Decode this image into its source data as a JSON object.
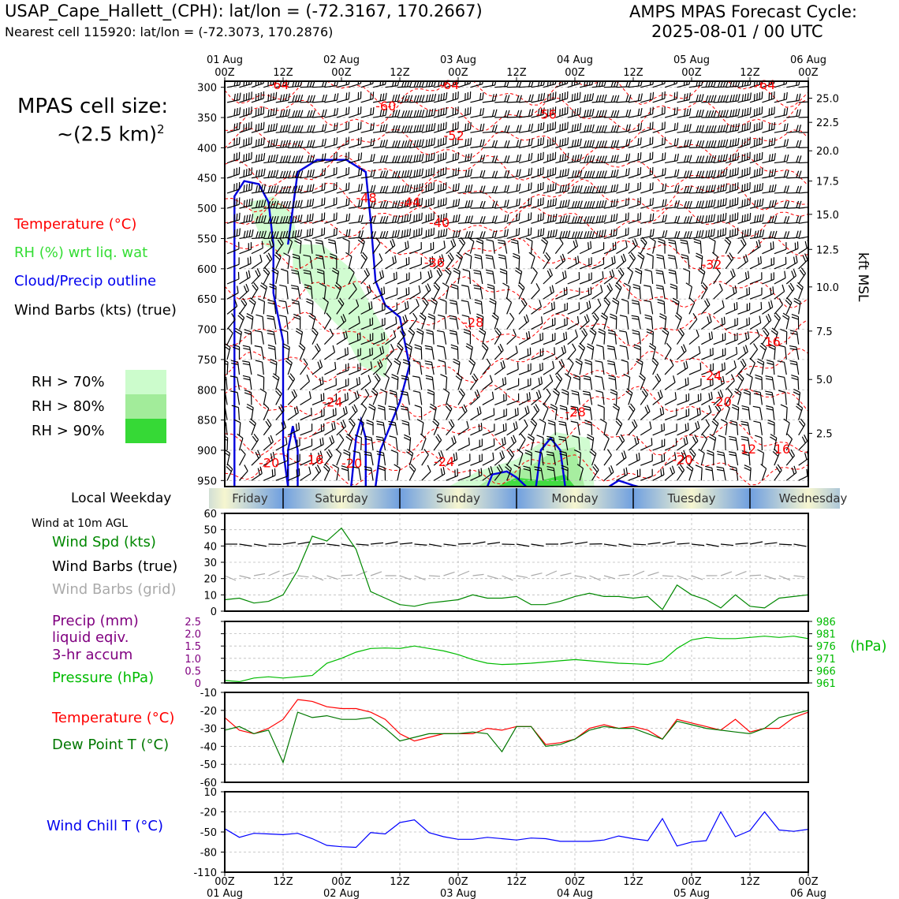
{
  "header": {
    "station": "USAP_Cape_Hallett_(CPH): lat/lon = (-72.3167, 170.2667)",
    "nearest": "Nearest cell 115920: lat/lon = (-72.3073, 170.2876)",
    "cycle_line1": "AMPS MPAS Forecast Cycle:",
    "cycle_line2": "2025-08-01 / 00 UTC"
  },
  "sidebar": {
    "cell_size_line1": "MPAS cell size:",
    "cell_size_line2": "~(2.5 km)",
    "cell_size_sup": "2",
    "legend_temperature": "Temperature (°C)",
    "legend_rh": "RH (%) wrt liq. wat",
    "legend_cloud": "Cloud/Precip outline",
    "legend_wind": "Wind Barbs (kts) (true)",
    "rh_levels": [
      {
        "label": "RH > 70%",
        "color": "#ccfccc"
      },
      {
        "label": "RH > 80%",
        "color": "#a2ec9a"
      },
      {
        "label": "RH > 90%",
        "color": "#36d936"
      }
    ],
    "local_weekday": "Local Weekday",
    "wind_10m": "Wind at 10m AGL",
    "wind_spd": "Wind Spd (kts)",
    "wind_barbs_true": "Wind Barbs (true)",
    "wind_barbs_grid": "Wind Barbs (grid)",
    "precip_line1": "Precip (mm)",
    "precip_line2": "liquid eqiv.",
    "precip_line3": "3-hr accum",
    "pressure": "Pressure (hPa)",
    "temperature": "Temperature (°C)",
    "dewpoint": "Dew Point T (°C)",
    "windchill": "Wind Chill T (°C)",
    "pressure_units": "(hPa)",
    "kft_label": "kft MSL"
  },
  "colors": {
    "temperature": "#ff0000",
    "rh": "#33cc33",
    "cloud": "#0000dd",
    "wind_true": "#000000",
    "wind_grid": "#aaaaaa",
    "precip": "#800080",
    "pressure": "#00bb00",
    "dewpoint": "#007700",
    "windchill": "#0000ff"
  },
  "chart_data": [
    {
      "type": "heatmap",
      "name": "time-height cross section",
      "top_axis_ticks": [
        {
          "hour": 0,
          "line1": "01 Aug",
          "line2": "00Z"
        },
        {
          "hour": 12,
          "line1": "",
          "line2": "12Z"
        },
        {
          "hour": 24,
          "line1": "02 Aug",
          "line2": "00Z"
        },
        {
          "hour": 36,
          "line1": "",
          "line2": "12Z"
        },
        {
          "hour": 48,
          "line1": "03 Aug",
          "line2": "00Z"
        },
        {
          "hour": 60,
          "line1": "",
          "line2": "12Z"
        },
        {
          "hour": 72,
          "line1": "04 Aug",
          "line2": "00Z"
        },
        {
          "hour": 84,
          "line1": "",
          "line2": "12Z"
        },
        {
          "hour": 96,
          "line1": "05 Aug",
          "line2": "00Z"
        },
        {
          "hour": 108,
          "line1": "",
          "line2": "12Z"
        },
        {
          "hour": 120,
          "line1": "06 Aug",
          "line2": "00Z"
        }
      ],
      "pressure_ticks": [
        300,
        350,
        400,
        450,
        500,
        550,
        600,
        650,
        700,
        750,
        800,
        850,
        900,
        950
      ],
      "kft_ticks": [
        {
          "label": "25.0",
          "p": 318
        },
        {
          "label": "22.5",
          "p": 358
        },
        {
          "label": "20.0",
          "p": 405
        },
        {
          "label": "17.5",
          "p": 455
        },
        {
          "label": "15.0",
          "p": 510
        },
        {
          "label": "12.5",
          "p": 568
        },
        {
          "label": "10.0",
          "p": 630
        },
        {
          "label": "7.5",
          "p": 703
        },
        {
          "label": "5.0",
          "p": 783
        },
        {
          "label": "2.5",
          "p": 872
        }
      ],
      "ylim": [
        290,
        960
      ],
      "xlim": [
        0,
        120
      ],
      "temperature_labels": [
        {
          "t": 9,
          "p": 303,
          "text": "-64"
        },
        {
          "t": 44,
          "p": 303,
          "text": "-64"
        },
        {
          "t": 109,
          "p": 303,
          "text": "-64"
        },
        {
          "t": 31,
          "p": 338,
          "text": "-60"
        },
        {
          "t": 64,
          "p": 352,
          "text": "-56"
        },
        {
          "t": 45,
          "p": 387,
          "text": "-52"
        },
        {
          "t": 27,
          "p": 490,
          "text": "-48"
        },
        {
          "t": 36,
          "p": 497,
          "text": "-44"
        },
        {
          "t": 42,
          "p": 531,
          "text": "-40"
        },
        {
          "t": 41,
          "p": 597,
          "text": "-36"
        },
        {
          "t": 98,
          "p": 600,
          "text": "-32"
        },
        {
          "t": 49,
          "p": 696,
          "text": "-28"
        },
        {
          "t": 70,
          "p": 844,
          "text": "-28"
        },
        {
          "t": 111,
          "p": 728,
          "text": "16"
        },
        {
          "t": 98,
          "p": 784,
          "text": "-24"
        },
        {
          "t": 20,
          "p": 828,
          "text": "-24"
        },
        {
          "t": 100,
          "p": 827,
          "text": "-20"
        },
        {
          "t": 7,
          "p": 928,
          "text": "-20"
        },
        {
          "t": 24,
          "p": 929,
          "text": "-20"
        },
        {
          "t": 43,
          "p": 926,
          "text": "-24"
        },
        {
          "t": 92,
          "p": 923,
          "text": "-20"
        },
        {
          "t": 106,
          "p": 905,
          "text": "12"
        },
        {
          "t": 113,
          "p": 905,
          "text": "16"
        },
        {
          "t": 17,
          "p": 923,
          "text": "16"
        }
      ],
      "rh_regions": [
        {
          "level": ">70%",
          "polygon_tp": [
            [
              5,
              490
            ],
            [
              10,
              480
            ],
            [
              14,
              510
            ],
            [
              15,
              560
            ],
            [
              12,
              580
            ],
            [
              8,
              560
            ],
            [
              6,
              520
            ]
          ]
        },
        {
          "level": ">70%",
          "polygon_tp": [
            [
              14,
              560
            ],
            [
              20,
              560
            ],
            [
              26,
              600
            ],
            [
              30,
              660
            ],
            [
              34,
              720
            ],
            [
              33,
              780
            ],
            [
              28,
              760
            ],
            [
              24,
              700
            ],
            [
              18,
              650
            ],
            [
              14,
              600
            ]
          ]
        },
        {
          "level": ">70%",
          "polygon_tp": [
            [
              46,
              960
            ],
            [
              52,
              935
            ],
            [
              60,
              915
            ],
            [
              68,
              870
            ],
            [
              75,
              880
            ],
            [
              76,
              960
            ]
          ]
        },
        {
          "level": ">80%",
          "polygon_tp": [
            [
              52,
              960
            ],
            [
              56,
              940
            ],
            [
              62,
              930
            ],
            [
              68,
              900
            ],
            [
              72,
              895
            ],
            [
              74,
              960
            ]
          ]
        },
        {
          "level": ">90%",
          "polygon_tp": [
            [
              56,
              960
            ],
            [
              60,
              945
            ],
            [
              65,
              950
            ],
            [
              70,
              940
            ],
            [
              72,
              960
            ]
          ]
        }
      ],
      "cloud_outlines": [
        {
          "points_tp": [
            [
              2,
              960
            ],
            [
              2,
              480
            ],
            [
              4,
              455
            ],
            [
              7,
              460
            ],
            [
              9,
              490
            ],
            [
              10,
              560
            ],
            [
              10,
              640
            ],
            [
              12,
              720
            ],
            [
              12,
              900
            ],
            [
              13,
              960
            ]
          ]
        },
        {
          "points_tp": [
            [
              13,
              960
            ],
            [
              13,
              900
            ],
            [
              14,
              860
            ],
            [
              15,
              900
            ],
            [
              15,
              960
            ]
          ]
        },
        {
          "points_tp": [
            [
              13,
              560
            ],
            [
              15,
              440
            ],
            [
              19,
              420
            ],
            [
              25,
              420
            ],
            [
              29,
              440
            ],
            [
              30,
              520
            ],
            [
              31,
              620
            ],
            [
              33,
              660
            ],
            [
              36,
              680
            ],
            [
              38,
              760
            ],
            [
              36,
              820
            ],
            [
              32,
              900
            ],
            [
              31,
              960
            ]
          ]
        },
        {
          "points_tp": [
            [
              26,
              960
            ],
            [
              27,
              880
            ],
            [
              28,
              850
            ],
            [
              29,
              880
            ],
            [
              29,
              960
            ]
          ]
        },
        {
          "points_tp": [
            [
              54,
              960
            ],
            [
              55,
              940
            ],
            [
              58,
              935
            ],
            [
              60,
              945
            ],
            [
              62,
              960
            ]
          ]
        },
        {
          "points_tp": [
            [
              64,
              960
            ],
            [
              65,
              900
            ],
            [
              67,
              880
            ],
            [
              69,
              900
            ],
            [
              70,
              960
            ]
          ]
        },
        {
          "points_tp": [
            [
              79,
              960
            ],
            [
              81,
              950
            ],
            [
              84,
              958
            ],
            [
              85,
              960
            ]
          ]
        }
      ],
      "isotherm_levels_p": [
        305,
        345,
        395,
        440,
        480,
        520,
        575,
        640,
        700,
        760,
        820,
        880,
        930
      ]
    },
    {
      "type": "line",
      "name": "weekday band",
      "categories": [
        "Friday",
        "Saturday",
        "Sunday",
        "Monday",
        "Tuesday",
        "Wednesday"
      ],
      "day_starts_hour": [
        -12,
        12,
        36,
        60,
        84,
        108
      ]
    },
    {
      "type": "line",
      "title": "Wind Spd (kts)",
      "ylim": [
        0,
        60
      ],
      "yticks": [
        0,
        10,
        20,
        30,
        40,
        50,
        60
      ],
      "x_hours": [
        0,
        3,
        6,
        9,
        12,
        15,
        18,
        21,
        24,
        27,
        30,
        33,
        36,
        39,
        42,
        45,
        48,
        51,
        54,
        57,
        60,
        63,
        66,
        69,
        72,
        75,
        78,
        81,
        84,
        87,
        90,
        93,
        96,
        99,
        102,
        105,
        108,
        111,
        114,
        117,
        120
      ],
      "values": [
        7,
        8,
        5,
        6,
        10,
        25,
        46,
        43,
        51,
        38,
        12,
        8,
        4,
        3,
        5,
        6,
        7,
        10,
        8,
        8,
        9,
        4,
        4,
        6,
        9,
        11,
        9,
        9,
        8,
        9,
        1,
        16,
        10,
        7,
        2,
        10,
        3,
        2,
        8,
        9,
        10
      ]
    },
    {
      "type": "line",
      "title": "Pressure (hPa)",
      "pressure_ylim": [
        961,
        986
      ],
      "pressure_ticks": [
        961,
        966,
        971,
        976,
        981,
        986
      ],
      "precip_ylim": [
        0,
        2.5
      ],
      "precip_ticks": [
        "0",
        "0.5",
        "1.0",
        "1.5",
        "2.0",
        "2.5"
      ],
      "x_hours": [
        0,
        3,
        6,
        9,
        12,
        15,
        18,
        21,
        24,
        27,
        30,
        33,
        36,
        39,
        42,
        45,
        48,
        51,
        54,
        57,
        60,
        63,
        66,
        69,
        72,
        75,
        78,
        81,
        84,
        87,
        90,
        93,
        96,
        99,
        102,
        105,
        108,
        111,
        114,
        117,
        120
      ],
      "pressure": [
        962,
        961.5,
        963,
        963.5,
        963,
        963.5,
        964,
        969,
        971,
        973.5,
        975,
        975.2,
        975,
        976,
        975,
        974,
        972.5,
        970.5,
        969,
        968.5,
        968.7,
        969,
        969.5,
        970,
        970.5,
        970,
        969.5,
        969,
        968.8,
        968.5,
        970,
        975,
        978.5,
        979.5,
        979,
        979,
        979.5,
        980,
        979.5,
        980,
        979
      ]
    },
    {
      "type": "line",
      "ylim": [
        -60,
        -10
      ],
      "yticks": [
        -10,
        -20,
        -30,
        -40,
        -50,
        -60
      ],
      "x_hours": [
        0,
        3,
        6,
        9,
        12,
        15,
        18,
        21,
        24,
        27,
        30,
        33,
        36,
        39,
        42,
        45,
        48,
        51,
        54,
        57,
        60,
        63,
        66,
        69,
        72,
        75,
        78,
        81,
        84,
        87,
        90,
        93,
        96,
        99,
        102,
        105,
        108,
        111,
        114,
        117,
        120
      ],
      "series": [
        {
          "name": "Temperature (°C)",
          "values": [
            -24,
            -31,
            -33,
            -30,
            -25,
            -14,
            -15,
            -18,
            -19,
            -19,
            -21,
            -25,
            -33,
            -37,
            -35,
            -33,
            -33,
            -33,
            -30,
            -31,
            -29,
            -29,
            -39,
            -38,
            -36,
            -30,
            -28,
            -30,
            -29,
            -31,
            -36,
            -25,
            -27,
            -29,
            -31,
            -25,
            -32,
            -30,
            -30,
            -24,
            -21
          ]
        },
        {
          "name": "Dew Point T (°C)",
          "values": [
            -31,
            -29,
            -33,
            -31,
            -49,
            -21,
            -24,
            -23,
            -25,
            -25,
            -24,
            -30,
            -37,
            -35,
            -33,
            -33,
            -33,
            -32,
            -33,
            -43,
            -29,
            -29,
            -40,
            -39,
            -36,
            -31,
            -29,
            -30,
            -30,
            -33,
            -36,
            -26,
            -28,
            -30,
            -31,
            -32,
            -33,
            -30,
            -24,
            -22,
            -20
          ]
        }
      ]
    },
    {
      "type": "line",
      "title": "Wind Chill T (°C)",
      "ylim": [
        -110,
        10
      ],
      "yticks": [
        10,
        -20,
        -50,
        -80,
        -110
      ],
      "x_hours": [
        0,
        3,
        6,
        9,
        12,
        15,
        18,
        21,
        24,
        27,
        30,
        33,
        36,
        39,
        42,
        45,
        48,
        51,
        54,
        57,
        60,
        63,
        66,
        69,
        72,
        75,
        78,
        81,
        84,
        87,
        90,
        93,
        96,
        99,
        102,
        105,
        108,
        111,
        114,
        117,
        120
      ],
      "values": [
        -45,
        -58,
        -52,
        -53,
        -54,
        -52,
        -60,
        -70,
        -72,
        -73,
        -51,
        -53,
        -36,
        -32,
        -51,
        -57,
        -61,
        -61,
        -58,
        -60,
        -62,
        -59,
        -60,
        -64,
        -64,
        -64,
        -62,
        -56,
        -60,
        -63,
        -30,
        -71,
        -65,
        -63,
        -20,
        -57,
        -48,
        -20,
        -47,
        -49,
        -46
      ]
    }
  ],
  "bottom_axis": [
    {
      "hour": 0,
      "line1": "00Z",
      "line2": "01 Aug"
    },
    {
      "hour": 12,
      "line1": "12Z",
      "line2": ""
    },
    {
      "hour": 24,
      "line1": "00Z",
      "line2": "02 Aug"
    },
    {
      "hour": 36,
      "line1": "12Z",
      "line2": ""
    },
    {
      "hour": 48,
      "line1": "00Z",
      "line2": "03 Aug"
    },
    {
      "hour": 60,
      "line1": "12Z",
      "line2": ""
    },
    {
      "hour": 72,
      "line1": "00Z",
      "line2": "04 Aug"
    },
    {
      "hour": 84,
      "line1": "12Z",
      "line2": ""
    },
    {
      "hour": 96,
      "line1": "00Z",
      "line2": "05 Aug"
    },
    {
      "hour": 108,
      "line1": "12Z",
      "line2": ""
    },
    {
      "hour": 120,
      "line1": "00Z",
      "line2": "06 Aug"
    }
  ]
}
